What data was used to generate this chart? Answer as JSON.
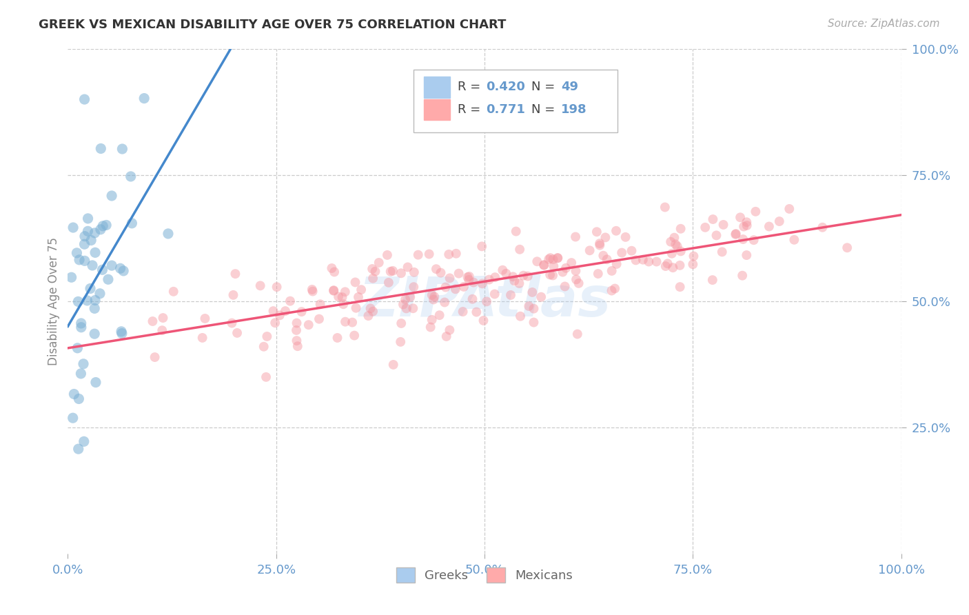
{
  "title": "GREEK VS MEXICAN DISABILITY AGE OVER 75 CORRELATION CHART",
  "source": "Source: ZipAtlas.com",
  "ylabel": "Disability Age Over 75",
  "watermark": "ZIPAtlas",
  "legend_greek_r": "0.420",
  "legend_greek_n": "49",
  "legend_mexican_r": "0.771",
  "legend_mexican_n": "198",
  "greek_color": "#7AAFD4",
  "mexican_color": "#F4959F",
  "greek_line_color": "#4488CC",
  "mexican_line_color": "#EE5577",
  "xlim": [
    0,
    1
  ],
  "ylim": [
    0,
    1
  ],
  "xticks": [
    0,
    0.25,
    0.5,
    0.75,
    1.0
  ],
  "yticks": [
    0.25,
    0.5,
    0.75,
    1.0
  ],
  "xticklabels": [
    "0.0%",
    "25.0%",
    "50.0%",
    "75.0%",
    "100.0%"
  ],
  "yticklabels": [
    "25.0%",
    "50.0%",
    "75.0%",
    "100.0%"
  ],
  "background_color": "#FFFFFF",
  "grid_color": "#CCCCCC",
  "title_color": "#333333",
  "axis_tick_color": "#6699CC",
  "seed": 42
}
